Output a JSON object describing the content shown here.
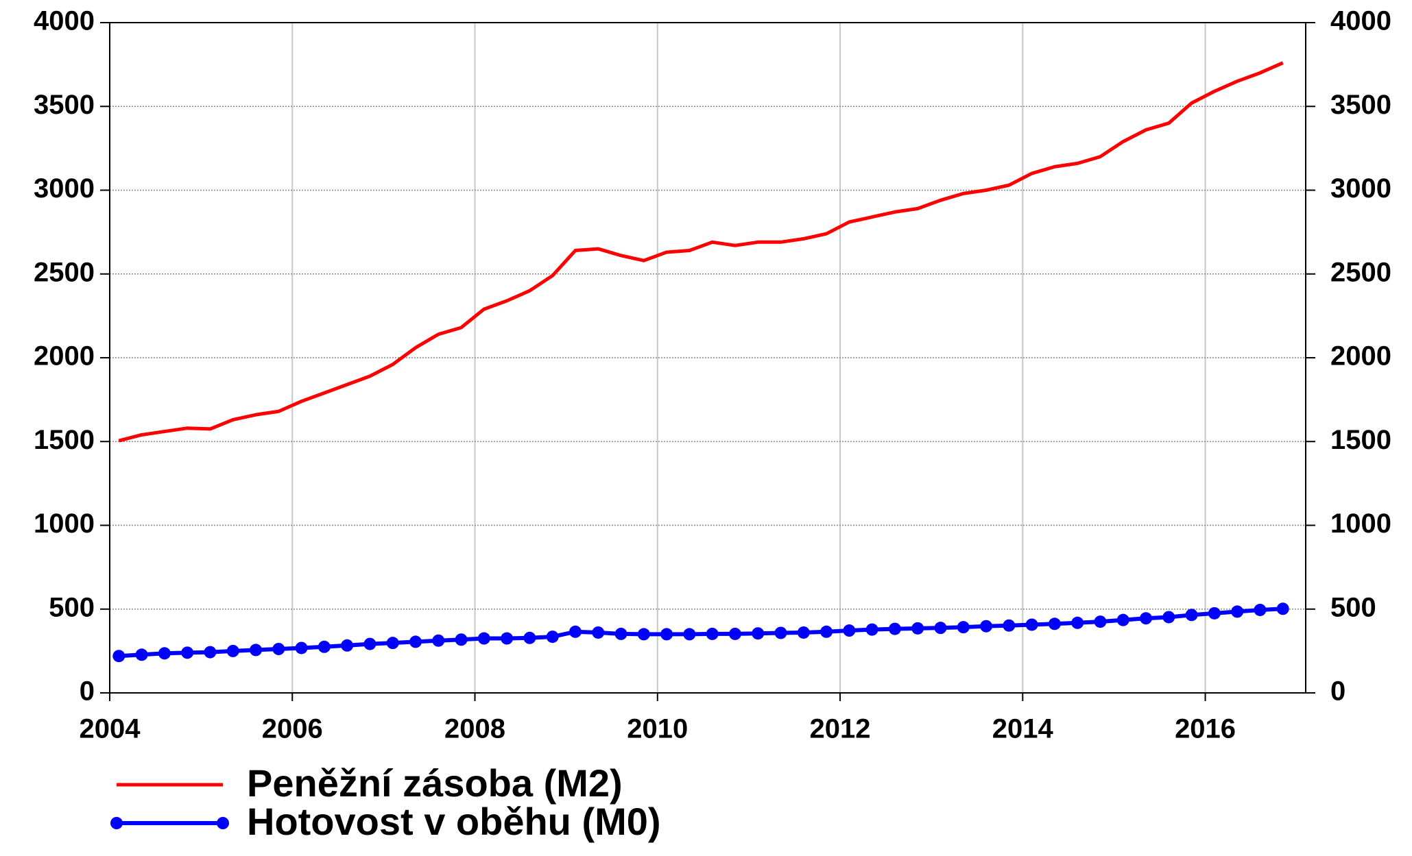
{
  "chart_data": {
    "type": "line",
    "x": [
      2004.1,
      2004.35,
      2004.6,
      2004.85,
      2005.1,
      2005.35,
      2005.6,
      2005.85,
      2006.1,
      2006.35,
      2006.6,
      2006.85,
      2007.1,
      2007.35,
      2007.6,
      2007.85,
      2008.1,
      2008.35,
      2008.6,
      2008.85,
      2009.1,
      2009.35,
      2009.6,
      2009.85,
      2010.1,
      2010.35,
      2010.6,
      2010.85,
      2011.1,
      2011.35,
      2011.6,
      2011.85,
      2012.1,
      2012.35,
      2012.6,
      2012.85,
      2013.1,
      2013.35,
      2013.6,
      2013.85,
      2014.1,
      2014.35,
      2014.6,
      2014.85,
      2015.1,
      2015.35,
      2015.6,
      2015.85,
      2016.1,
      2016.35,
      2016.6,
      2016.85
    ],
    "series": [
      {
        "name": "Peněžní zásoba (M2)",
        "color": "#ff0000",
        "marker": false,
        "values": [
          1505,
          1540,
          1560,
          1580,
          1575,
          1630,
          1660,
          1680,
          1740,
          1790,
          1840,
          1890,
          1960,
          2060,
          2140,
          2180,
          2290,
          2340,
          2400,
          2490,
          2640,
          2650,
          2610,
          2580,
          2630,
          2640,
          2690,
          2670,
          2690,
          2690,
          2710,
          2740,
          2810,
          2840,
          2870,
          2890,
          2940,
          2980,
          3000,
          3030,
          3100,
          3140,
          3160,
          3200,
          3290,
          3360,
          3400,
          3520,
          3590,
          3650,
          3700,
          3760
        ]
      },
      {
        "name": "Hotovost v oběhu (M0)",
        "color": "#0000ff",
        "marker": true,
        "values": [
          220,
          228,
          236,
          240,
          243,
          250,
          256,
          262,
          268,
          275,
          283,
          292,
          298,
          305,
          312,
          318,
          325,
          325,
          328,
          335,
          365,
          360,
          352,
          350,
          350,
          350,
          352,
          352,
          355,
          358,
          360,
          365,
          372,
          378,
          382,
          385,
          388,
          392,
          398,
          402,
          407,
          412,
          418,
          425,
          435,
          445,
          452,
          465,
          475,
          485,
          495,
          502
        ]
      }
    ],
    "xlim": [
      2004,
      2017.1
    ],
    "xticks": [
      2004,
      2006,
      2008,
      2010,
      2012,
      2014,
      2016
    ],
    "ylim": [
      0,
      4000
    ],
    "yticks": [
      0,
      500,
      1000,
      1500,
      2000,
      2500,
      3000,
      3500,
      4000
    ],
    "y2lim": [
      0,
      4000
    ],
    "y2ticks": [
      0,
      500,
      1000,
      1500,
      2000,
      2500,
      3000,
      3500,
      4000
    ],
    "grid": true
  }
}
